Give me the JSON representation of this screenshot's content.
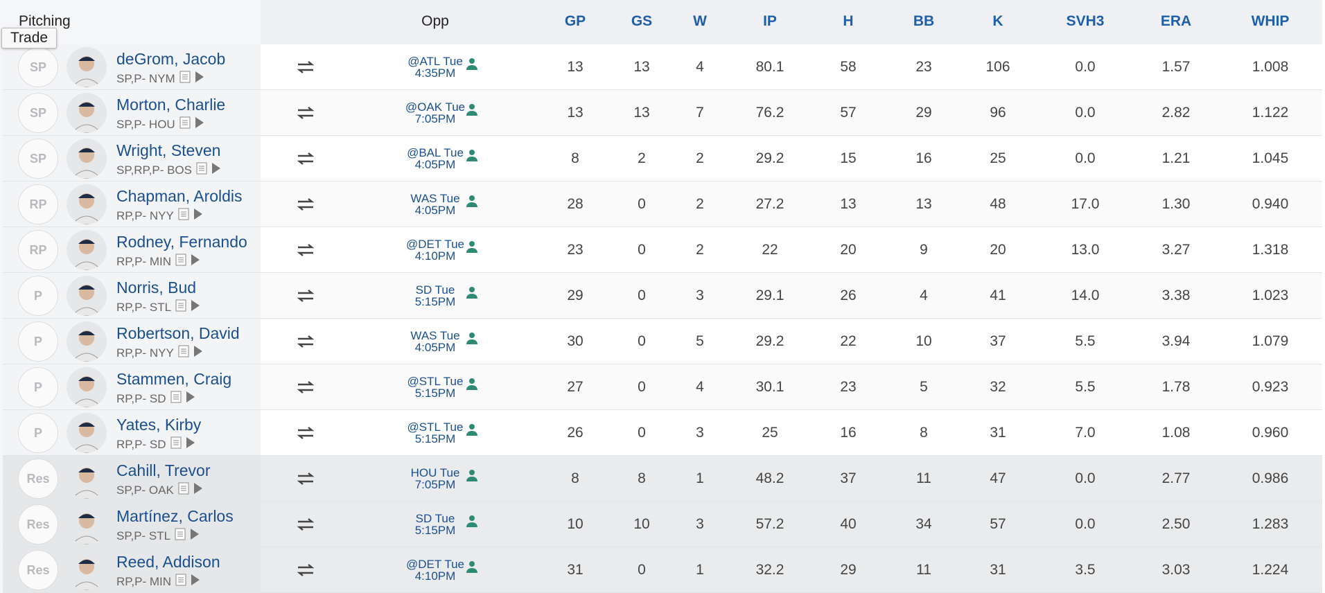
{
  "header": {
    "title": "Pitching",
    "tooltip": "Trade",
    "columns": [
      "Opp",
      "GP",
      "GS",
      "W",
      "IP",
      "H",
      "BB",
      "K",
      "SVH3",
      "ERA",
      "WHIP"
    ]
  },
  "rows": [
    {
      "pos": "SP",
      "name": "deGrom, Jacob",
      "elig": "SP,P- NYM",
      "opp": "@ATL Tue",
      "time": "4:35PM",
      "stats": [
        "13",
        "13",
        "4",
        "80.1",
        "58",
        "23",
        "106",
        "0.0",
        "1.57",
        "1.008"
      ]
    },
    {
      "pos": "SP",
      "name": "Morton, Charlie",
      "elig": "SP,P- HOU",
      "opp": "@OAK Tue",
      "time": "7:05PM",
      "stats": [
        "13",
        "13",
        "7",
        "76.2",
        "57",
        "29",
        "96",
        "0.0",
        "2.82",
        "1.122"
      ]
    },
    {
      "pos": "SP",
      "name": "Wright, Steven",
      "elig": "SP,RP,P- BOS",
      "opp": "@BAL Tue",
      "time": "4:05PM",
      "stats": [
        "8",
        "2",
        "2",
        "29.2",
        "15",
        "16",
        "25",
        "0.0",
        "1.21",
        "1.045"
      ]
    },
    {
      "pos": "RP",
      "name": "Chapman, Aroldis",
      "elig": "RP,P- NYY",
      "opp": "WAS Tue",
      "time": "4:05PM",
      "stats": [
        "28",
        "0",
        "2",
        "27.2",
        "13",
        "13",
        "48",
        "17.0",
        "1.30",
        "0.940"
      ]
    },
    {
      "pos": "RP",
      "name": "Rodney, Fernando",
      "elig": "RP,P- MIN",
      "opp": "@DET Tue",
      "time": "4:10PM",
      "stats": [
        "23",
        "0",
        "2",
        "22",
        "20",
        "9",
        "20",
        "13.0",
        "3.27",
        "1.318"
      ]
    },
    {
      "pos": "P",
      "name": "Norris, Bud",
      "elig": "RP,P- STL",
      "opp": "SD Tue",
      "time": "5:15PM",
      "stats": [
        "29",
        "0",
        "3",
        "29.1",
        "26",
        "4",
        "41",
        "14.0",
        "3.38",
        "1.023"
      ]
    },
    {
      "pos": "P",
      "name": "Robertson, David",
      "elig": "RP,P- NYY",
      "opp": "WAS Tue",
      "time": "4:05PM",
      "stats": [
        "30",
        "0",
        "5",
        "29.2",
        "22",
        "10",
        "37",
        "5.5",
        "3.94",
        "1.079"
      ]
    },
    {
      "pos": "P",
      "name": "Stammen, Craig",
      "elig": "RP,P- SD",
      "opp": "@STL Tue",
      "time": "5:15PM",
      "stats": [
        "27",
        "0",
        "4",
        "30.1",
        "23",
        "5",
        "32",
        "5.5",
        "1.78",
        "0.923"
      ]
    },
    {
      "pos": "P",
      "name": "Yates, Kirby",
      "elig": "RP,P- SD",
      "opp": "@STL Tue",
      "time": "5:15PM",
      "stats": [
        "26",
        "0",
        "3",
        "25",
        "16",
        "8",
        "31",
        "7.0",
        "1.08",
        "0.960"
      ]
    },
    {
      "pos": "Res",
      "name": "Cahill, Trevor",
      "elig": "SP,P- OAK",
      "opp": "HOU Tue",
      "time": "7:05PM",
      "stats": [
        "8",
        "8",
        "1",
        "48.2",
        "37",
        "11",
        "47",
        "0.0",
        "2.77",
        "0.986"
      ]
    },
    {
      "pos": "Res",
      "name": "Martínez, Carlos",
      "elig": "SP,P- STL",
      "opp": "SD Tue",
      "time": "5:15PM",
      "stats": [
        "10",
        "10",
        "3",
        "57.2",
        "40",
        "34",
        "57",
        "0.0",
        "2.50",
        "1.283"
      ]
    },
    {
      "pos": "Res",
      "name": "Reed, Addison",
      "elig": "RP,P- MIN",
      "opp": "@DET Tue",
      "time": "4:10PM",
      "stats": [
        "31",
        "0",
        "1",
        "32.2",
        "29",
        "11",
        "31",
        "3.5",
        "3.03",
        "1.224"
      ]
    }
  ]
}
